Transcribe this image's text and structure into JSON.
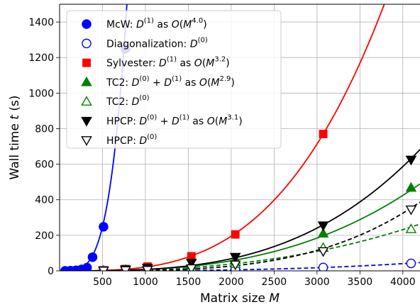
{
  "chart_data": {
    "type": "line",
    "xlabel": "Matrix size",
    "xlabel_var": "M",
    "ylabel": "Wall time",
    "ylabel_var": "t",
    "ylabel_unit": "(s)",
    "xlim": [
      0,
      4200
    ],
    "ylim": [
      0,
      1500
    ],
    "x_ticks": [
      500,
      1000,
      1500,
      2000,
      2500,
      3000,
      3500,
      4000
    ],
    "y_ticks": [
      0,
      200,
      400,
      600,
      800,
      1000,
      1200,
      1400
    ],
    "grid": true,
    "legend_position": "top-left",
    "series": [
      {
        "name": "McW: D(1) as O(M^4.0)",
        "legend": {
          "label": "McW: ",
          "sym": "D",
          "sup": "(1)",
          "tail": " as ",
          "o": "O",
          "m": "M",
          "exp": "4.0",
          "close": ")"
        },
        "color": "#0000ff",
        "marker": "circle",
        "filled": true,
        "x": [
          64,
          128,
          192,
          256,
          320,
          384,
          512,
          768
        ],
        "y": [
          0.2,
          1,
          3,
          8,
          18,
          77,
          248,
          1250
        ],
        "fit": {
          "type": "power",
          "exponent": 4.0,
          "coef": 3.97e-09,
          "dashed": false
        }
      },
      {
        "name": "Diagonalization: D(0)",
        "legend": {
          "label": "Diagonalization: ",
          "sym": "D",
          "sup": "(0)"
        },
        "color": "#0000ff",
        "marker": "circle",
        "filled": false,
        "x": [
          512,
          768,
          1024,
          1536,
          2048,
          3072,
          4096
        ],
        "y": [
          0.1,
          0.4,
          1,
          3,
          6.5,
          19,
          42
        ],
        "fit": {
          "type": "power",
          "exponent": 2.9,
          "coef": 1.45e-09,
          "dashed": true
        }
      },
      {
        "name": "Sylvester: D(1) as O(M^3.2)",
        "legend": {
          "label": "Sylvester: ",
          "sym": "D",
          "sup": "(1)",
          "tail": " as ",
          "o": "O",
          "m": "M",
          "exp": "3.2",
          "close": ")"
        },
        "color": "#ff0000",
        "marker": "square",
        "filled": true,
        "x": [
          512,
          768,
          1024,
          1536,
          2048,
          3072
        ],
        "y": [
          3,
          10,
          24,
          82,
          205,
          770
        ],
        "fit": {
          "type": "power",
          "exponent": 3.2,
          "coef": 5.33e-09,
          "dashed": false
        }
      },
      {
        "name": "TC2: D(0) + D(1) as O(M^2.9)",
        "legend": {
          "label": "TC2: ",
          "sym": "D",
          "sup": "(0)",
          "plus": true,
          "sym2": "D",
          "sup2": "(1)",
          "tail": " as ",
          "o": "O",
          "m": "M",
          "exp": "2.9",
          "close": ")"
        },
        "color": "#008000",
        "marker": "triangle-up",
        "filled": true,
        "x": [
          512,
          768,
          1024,
          1536,
          2048,
          3072,
          4096
        ],
        "y": [
          2,
          6,
          12,
          35,
          63,
          210,
          468
        ],
        "fit": {
          "type": "power",
          "exponent": 2.9,
          "coef": 1.52e-08,
          "dashed": false
        }
      },
      {
        "name": "TC2: D(0)",
        "legend": {
          "label": "TC2: ",
          "sym": "D",
          "sup": "(0)"
        },
        "color": "#008000",
        "marker": "triangle-up",
        "filled": false,
        "x": [
          512,
          768,
          1024,
          1536,
          2048,
          3072,
          4096
        ],
        "y": [
          1,
          3,
          7,
          20,
          40,
          130,
          235
        ],
        "fit": {
          "type": "power",
          "exponent": 2.6,
          "coef": 1e-07,
          "dashed": true
        }
      },
      {
        "name": "HPCP: D(0) + D(1) as O(M^3.1)",
        "legend": {
          "label": "HPCP: ",
          "sym": "D",
          "sup": "(0)",
          "plus": true,
          "sym2": "D",
          "sup2": "(1)",
          "tail": " as ",
          "o": "O",
          "m": "M",
          "exp": "3.1",
          "close": ")"
        },
        "color": "#000000",
        "marker": "triangle-down",
        "filled": true,
        "x": [
          512,
          768,
          1024,
          1536,
          2048,
          3072,
          4096
        ],
        "y": [
          2,
          8,
          17,
          45,
          78,
          255,
          625
        ],
        "fit": {
          "type": "power",
          "exponent": 3.1,
          "coef": 4e-09,
          "dashed": false
        }
      },
      {
        "name": "HPCP: D(0)",
        "legend": {
          "label": "HPCP: ",
          "sym": "D",
          "sup": "(0)"
        },
        "color": "#000000",
        "marker": "triangle-down",
        "filled": false,
        "x": [
          512,
          768,
          1024,
          1536,
          2048,
          3072,
          4096
        ],
        "y": [
          1,
          3,
          5,
          14,
          35,
          110,
          345
        ],
        "fit": {
          "type": "power",
          "exponent": 3.6,
          "coef": 3.5e-11,
          "dashed": true
        }
      }
    ]
  }
}
